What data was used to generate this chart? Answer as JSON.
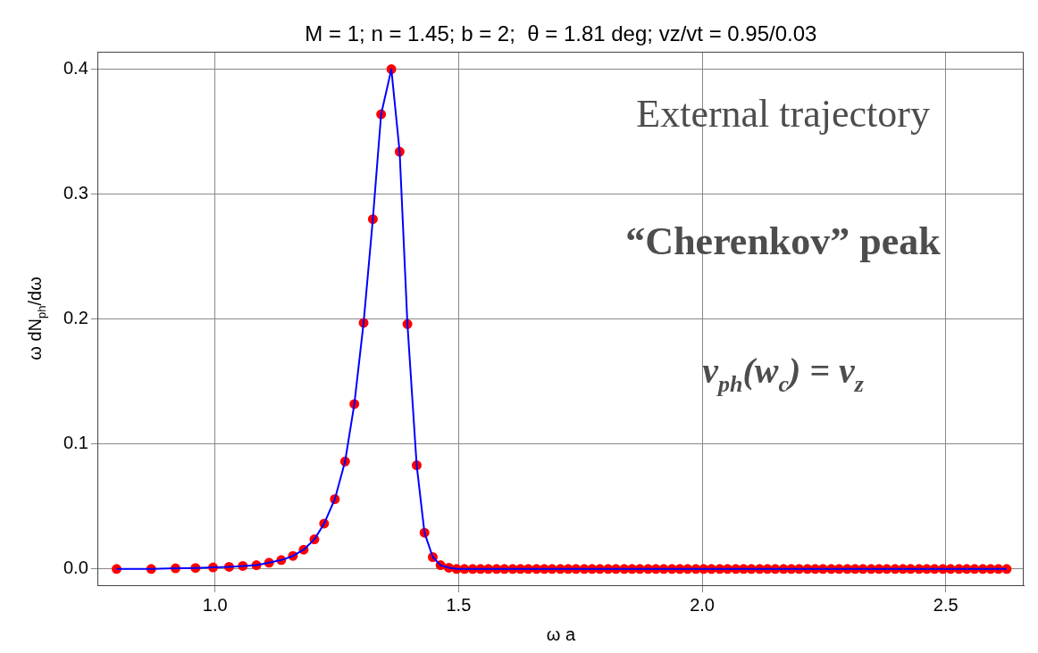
{
  "chart_data": {
    "type": "line",
    "title": "M = 1; n = 1.45; b = 2;  θ = 1.81 deg; vz/vt = 0.95/0.03",
    "xlabel": "ω a",
    "ylabel": "ω dN$_{ph}$/dω",
    "annotations": [
      "External trajectory",
      "“Cherenkov” peak",
      "v$_{ph}$(w$_{c}$) = v$_{z}$"
    ],
    "xlim": [
      0.76,
      2.66
    ],
    "ylim": [
      -0.013,
      0.414
    ],
    "xticks": [
      {
        "value": 1,
        "label": "1.0"
      },
      {
        "value": 1.5,
        "label": "1.5"
      },
      {
        "value": 2,
        "label": "2.0"
      },
      {
        "value": 2.5,
        "label": "2.5"
      }
    ],
    "yticks": [
      {
        "value": 0,
        "label": "0.0"
      },
      0.1,
      0.2,
      0.3,
      0.4
    ],
    "grid": true,
    "marker": "circle",
    "line_style": "solid",
    "series": [
      {
        "type": "line",
        "marker": "none",
        "color": "#0000ff",
        "x": [
          0.798,
          0.869,
          0.919,
          0.96,
          0.996,
          1.029,
          1.057,
          1.085,
          1.111,
          1.136,
          1.16,
          1.182,
          1.204,
          1.224,
          1.246,
          1.267,
          1.286,
          1.305,
          1.324,
          1.341,
          1.362,
          1.379,
          1.395,
          1.414,
          1.43,
          1.447,
          1.463,
          1.48,
          1.496,
          1.512,
          1.529,
          1.545,
          1.561,
          1.578,
          1.594,
          1.611,
          1.627,
          1.643,
          1.66,
          1.676,
          1.692,
          1.709,
          1.725,
          1.741,
          1.758,
          1.774,
          1.79,
          1.807,
          1.823,
          1.84,
          1.856,
          1.872,
          1.889,
          1.905,
          1.921,
          1.938,
          1.954,
          1.97,
          1.987,
          2.003,
          2.019,
          2.036,
          2.052,
          2.069,
          2.085,
          2.101,
          2.118,
          2.134,
          2.15,
          2.167,
          2.183,
          2.199,
          2.216,
          2.232,
          2.248,
          2.265,
          2.281,
          2.298,
          2.314,
          2.33,
          2.347,
          2.363,
          2.379,
          2.396,
          2.412,
          2.428,
          2.445,
          2.461,
          2.477,
          2.494,
          2.51,
          2.527,
          2.543,
          2.559,
          2.576,
          2.592,
          2.608,
          2.625
        ],
        "values": [
          0,
          0,
          0.0005,
          0.0008,
          0.0012,
          0.0017,
          0.0024,
          0.003,
          0.005,
          0.0071,
          0.0104,
          0.0154,
          0.0237,
          0.0363,
          0.0559,
          0.086,
          0.132,
          0.197,
          0.28,
          0.364,
          0.4,
          0.334,
          0.196,
          0.083,
          0.029,
          0.0095,
          0.003,
          0.001,
          0,
          0,
          0,
          0,
          0,
          0,
          0,
          0,
          0,
          0,
          0,
          0,
          0,
          0,
          0,
          0,
          0,
          0,
          0,
          0,
          0,
          0,
          0,
          0,
          0,
          0,
          0,
          0,
          0,
          0,
          0,
          0,
          0,
          0,
          0,
          0,
          0,
          0,
          0,
          0,
          0,
          0,
          0,
          0,
          0,
          0,
          0,
          0,
          0,
          0,
          0,
          0,
          0,
          0,
          0,
          0,
          0,
          0,
          0,
          0,
          0,
          0,
          0,
          0,
          0,
          0,
          0,
          0,
          0,
          0
        ]
      },
      {
        "type": "scatter",
        "color": "#ff0000",
        "x": [
          0.798,
          0.869,
          0.919,
          0.96,
          0.996,
          1.029,
          1.057,
          1.085,
          1.111,
          1.136,
          1.16,
          1.182,
          1.204,
          1.224,
          1.246,
          1.267,
          1.286,
          1.305,
          1.324,
          1.341,
          1.362,
          1.379,
          1.395,
          1.414,
          1.43,
          1.447,
          1.463,
          1.48,
          1.496,
          1.512,
          1.529,
          1.545,
          1.561,
          1.578,
          1.594,
          1.611,
          1.627,
          1.643,
          1.66,
          1.676,
          1.692,
          1.709,
          1.725,
          1.741,
          1.758,
          1.774,
          1.79,
          1.807,
          1.823,
          1.84,
          1.856,
          1.872,
          1.889,
          1.905,
          1.921,
          1.938,
          1.954,
          1.97,
          1.987,
          2.003,
          2.019,
          2.036,
          2.052,
          2.069,
          2.085,
          2.101,
          2.118,
          2.134,
          2.15,
          2.167,
          2.183,
          2.199,
          2.216,
          2.232,
          2.248,
          2.265,
          2.281,
          2.298,
          2.314,
          2.33,
          2.347,
          2.363,
          2.379,
          2.396,
          2.412,
          2.428,
          2.445,
          2.461,
          2.477,
          2.494,
          2.51,
          2.527,
          2.543,
          2.559,
          2.576,
          2.592,
          2.608,
          2.625
        ],
        "values": [
          0,
          0,
          0.0005,
          0.0008,
          0.0012,
          0.0017,
          0.0024,
          0.003,
          0.005,
          0.0071,
          0.0104,
          0.0154,
          0.0237,
          0.0363,
          0.0559,
          0.086,
          0.132,
          0.197,
          0.28,
          0.364,
          0.4,
          0.334,
          0.196,
          0.083,
          0.029,
          0.0095,
          0.003,
          0.001,
          0,
          0,
          0,
          0,
          0,
          0,
          0,
          0,
          0,
          0,
          0,
          0,
          0,
          0,
          0,
          0,
          0,
          0,
          0,
          0,
          0,
          0,
          0,
          0,
          0,
          0,
          0,
          0,
          0,
          0,
          0,
          0,
          0,
          0,
          0,
          0,
          0,
          0,
          0,
          0,
          0,
          0,
          0,
          0,
          0,
          0,
          0,
          0,
          0,
          0,
          0,
          0,
          0,
          0,
          0,
          0,
          0,
          0,
          0,
          0,
          0,
          0,
          0,
          0,
          0,
          0,
          0,
          0,
          0,
          0
        ]
      }
    ]
  }
}
